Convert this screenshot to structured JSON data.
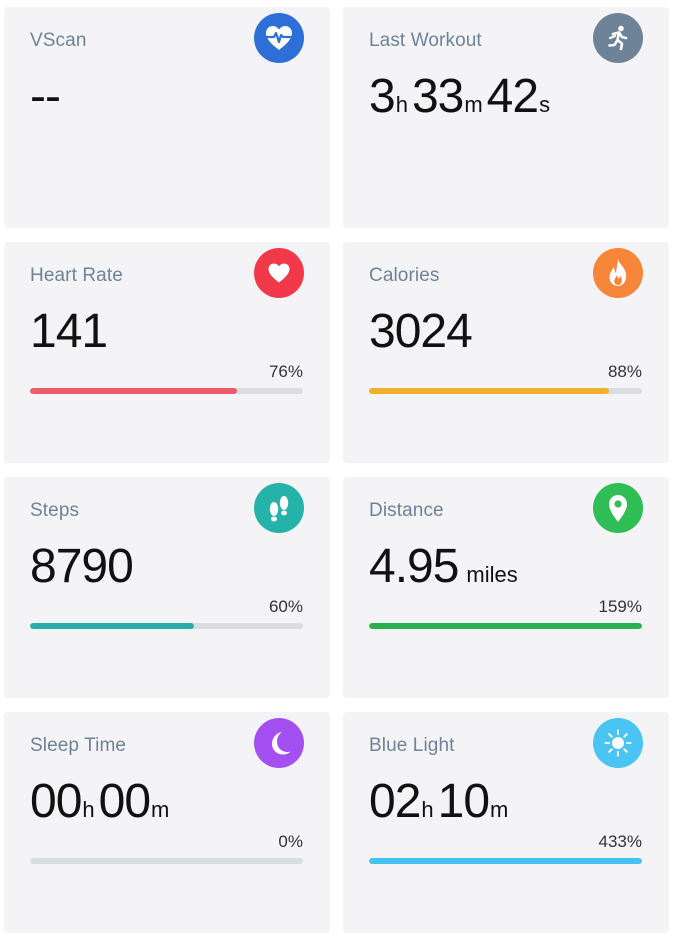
{
  "cards": {
    "vscan": {
      "title": "VScan",
      "value": "--",
      "icon": "heart-pulse-icon",
      "color": "#2d6fd6"
    },
    "last_workout": {
      "title": "Last Workout",
      "hours": "3",
      "hours_unit": "h",
      "minutes": "33",
      "minutes_unit": "m",
      "seconds": "42",
      "seconds_unit": "s",
      "icon": "running-person-icon",
      "color": "#6e8398"
    },
    "heart_rate": {
      "title": "Heart Rate",
      "value": "141",
      "percent": "76%",
      "progress": 0.76,
      "icon": "heart-icon",
      "color": "#f2394a",
      "bar_color": "#ef5b6b"
    },
    "calories": {
      "title": "Calories",
      "value": "3024",
      "percent": "88%",
      "progress": 0.88,
      "icon": "flame-icon",
      "color": "#f7853a",
      "bar_color": "#f0b02c"
    },
    "steps": {
      "title": "Steps",
      "value": "8790",
      "percent": "60%",
      "progress": 0.6,
      "icon": "footprints-icon",
      "color": "#24b2a9",
      "bar_color": "#27aeaa"
    },
    "distance": {
      "title": "Distance",
      "value": "4.95",
      "unit": "miles",
      "percent": "159%",
      "progress": 1.0,
      "icon": "location-pin-icon",
      "color": "#2fbe55",
      "bar_color": "#27b24f"
    },
    "sleep_time": {
      "title": "Sleep Time",
      "hours": "00",
      "hours_unit": "h",
      "minutes": "00",
      "minutes_unit": "m",
      "percent": "0%",
      "progress": 0.0,
      "icon": "moon-icon",
      "color": "#a34ff2",
      "bar_color": "#a34ff2"
    },
    "blue_light": {
      "title": "Blue Light",
      "hours": "02",
      "hours_unit": "h",
      "minutes": "10",
      "minutes_unit": "m",
      "percent": "433%",
      "progress": 1.0,
      "icon": "sun-icon",
      "color": "#4ac4f2",
      "bar_color": "#45c3f0"
    }
  }
}
